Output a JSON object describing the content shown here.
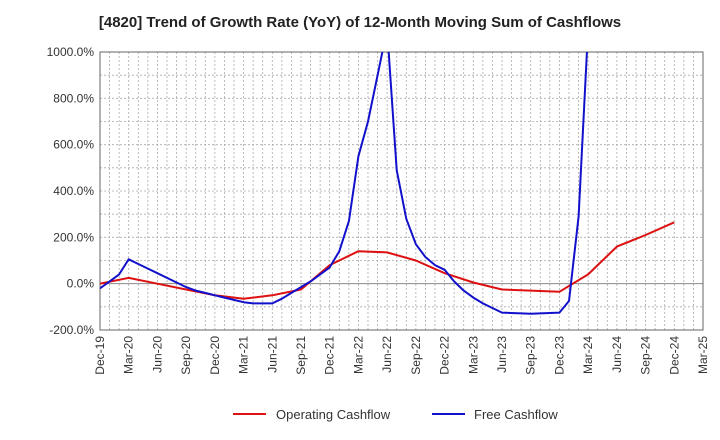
{
  "chart_data": {
    "type": "line",
    "title": "[4820]  Trend of Growth Rate (YoY) of 12-Month Moving Sum of Cashflows",
    "xlabel": "",
    "ylabel": "",
    "ylim": [
      -200,
      1000
    ],
    "yticks": [
      -200,
      0,
      200,
      400,
      600,
      800,
      1000
    ],
    "ytick_labels": [
      "-200.0%",
      "0.0%",
      "200.0%",
      "400.0%",
      "600.0%",
      "800.0%",
      "1000.0%"
    ],
    "xticks": [
      "Dec-19",
      "Mar-20",
      "Jun-20",
      "Sep-20",
      "Dec-20",
      "Mar-21",
      "Jun-21",
      "Sep-21",
      "Dec-21",
      "Mar-22",
      "Jun-22",
      "Sep-22",
      "Dec-22",
      "Mar-23",
      "Jun-23",
      "Sep-23",
      "Dec-23",
      "Mar-24",
      "Jun-24",
      "Sep-24",
      "Dec-24",
      "Mar-25"
    ],
    "grid": true,
    "legend_position": "bottom",
    "series": [
      {
        "name": "Operating Cashflow",
        "color": "#dd1111",
        "x": [
          "Dec-19",
          "Mar-20",
          "Jun-20",
          "Sep-20",
          "Dec-20",
          "Mar-21",
          "Jun-21",
          "Sep-21",
          "Dec-21",
          "Mar-22",
          "Jun-22",
          "Sep-22",
          "Dec-22",
          "Mar-23",
          "Jun-23",
          "Sep-23",
          "Dec-23",
          "Mar-24",
          "Jun-24",
          "Sep-24",
          "Dec-24"
        ],
        "values": [
          0,
          25,
          0,
          -25,
          -50,
          -65,
          -50,
          -25,
          80,
          140,
          135,
          100,
          45,
          5,
          -25,
          -30,
          -35,
          40,
          160,
          210,
          265
        ]
      },
      {
        "name": "Free Cashflow",
        "color": "#1111cc",
        "x": [
          "Dec-19",
          "Jan-20",
          "Feb-20",
          "Mar-20",
          "Apr-20",
          "May-20",
          "Jun-20",
          "Jul-20",
          "Aug-20",
          "Sep-20",
          "Oct-20",
          "Nov-20",
          "Dec-20",
          "Jan-21",
          "Feb-21",
          "Mar-21",
          "Apr-21",
          "May-21",
          "Jun-21",
          "Jul-21",
          "Aug-21",
          "Sep-21",
          "Oct-21",
          "Nov-21",
          "Dec-21",
          "Jan-22",
          "Feb-22",
          "Mar-22",
          "Apr-22",
          "May-22",
          "Jun-22",
          "Jul-22",
          "Aug-22",
          "Sep-22",
          "Oct-22",
          "Nov-22",
          "Dec-22",
          "Jan-23",
          "Feb-23",
          "Mar-23",
          "Apr-23",
          "May-23",
          "Jun-23",
          "Sep-23",
          "Dec-23",
          "Jan-24",
          "Feb-24",
          "Mar-24"
        ],
        "values": [
          -20,
          10,
          40,
          105,
          85,
          65,
          45,
          25,
          5,
          -15,
          -30,
          -40,
          -50,
          -60,
          -70,
          -80,
          -85,
          -85,
          -85,
          -65,
          -40,
          -15,
          10,
          40,
          70,
          140,
          270,
          550,
          700,
          900,
          1100,
          490,
          280,
          170,
          115,
          80,
          60,
          10,
          -30,
          -60,
          -85,
          -105,
          -125,
          -130,
          -125,
          -75,
          290,
          1100
        ]
      }
    ]
  }
}
